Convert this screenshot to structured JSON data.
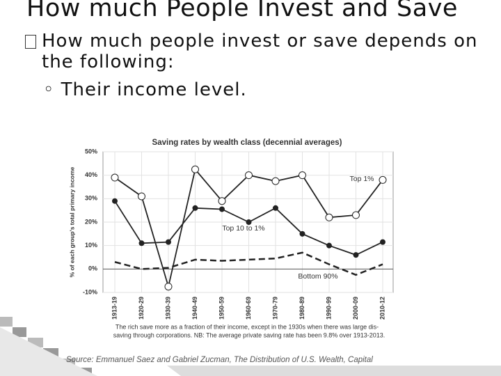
{
  "slide": {
    "title": "How much People Invest and Save",
    "bullet": "How much people invest or save depends on the following:",
    "sub_bullet": "Their income level."
  },
  "chart_data": {
    "type": "line",
    "title": "Saving rates by wealth class (decennial averages)",
    "y_label": "% of each group's total primary income",
    "categories": [
      "1913-19",
      "1920-29",
      "1930-39",
      "1940-49",
      "1950-59",
      "1960-69",
      "1970-79",
      "1980-89",
      "1990-99",
      "2000-09",
      "2010-12"
    ],
    "series": [
      {
        "name": "Top 1%",
        "color": "#222222",
        "marker": "open",
        "dash": false,
        "values": [
          39,
          31,
          -7.5,
          42.5,
          29,
          40,
          37.5,
          40,
          22,
          23,
          38
        ]
      },
      {
        "name": "Top 10 to 1%",
        "color": "#222222",
        "marker": "filled",
        "dash": false,
        "values": [
          29,
          11,
          11.5,
          26,
          25.5,
          20,
          26,
          15,
          10,
          6,
          11.5
        ]
      },
      {
        "name": "Bottom 90%",
        "color": "#222222",
        "marker": "none",
        "dash": true,
        "values": [
          3,
          0,
          0.5,
          4,
          3.5,
          4,
          4.5,
          7,
          2,
          -2.5,
          2
        ]
      }
    ],
    "ylim": [
      -10,
      50
    ],
    "yticks": [
      {
        "value": -10,
        "label": "-10%"
      },
      {
        "value": 0,
        "label": "0%"
      },
      {
        "value": 10,
        "label": "10%"
      },
      {
        "value": 20,
        "label": "20%"
      },
      {
        "value": 30,
        "label": "30%"
      },
      {
        "value": 40,
        "label": "40%"
      },
      {
        "value": 50,
        "label": "50%"
      }
    ],
    "grid": true,
    "caption": [
      "The rich save more as a fraction of their income, except in the 1930s when there was large dis-",
      "saving through corporations. NB: The average private saving rate has been 9.8% over 1913-2013."
    ],
    "source": "Source: Emmanuel Saez and Gabriel Zucman, The Distribution of U.S. Wealth, Capital"
  }
}
